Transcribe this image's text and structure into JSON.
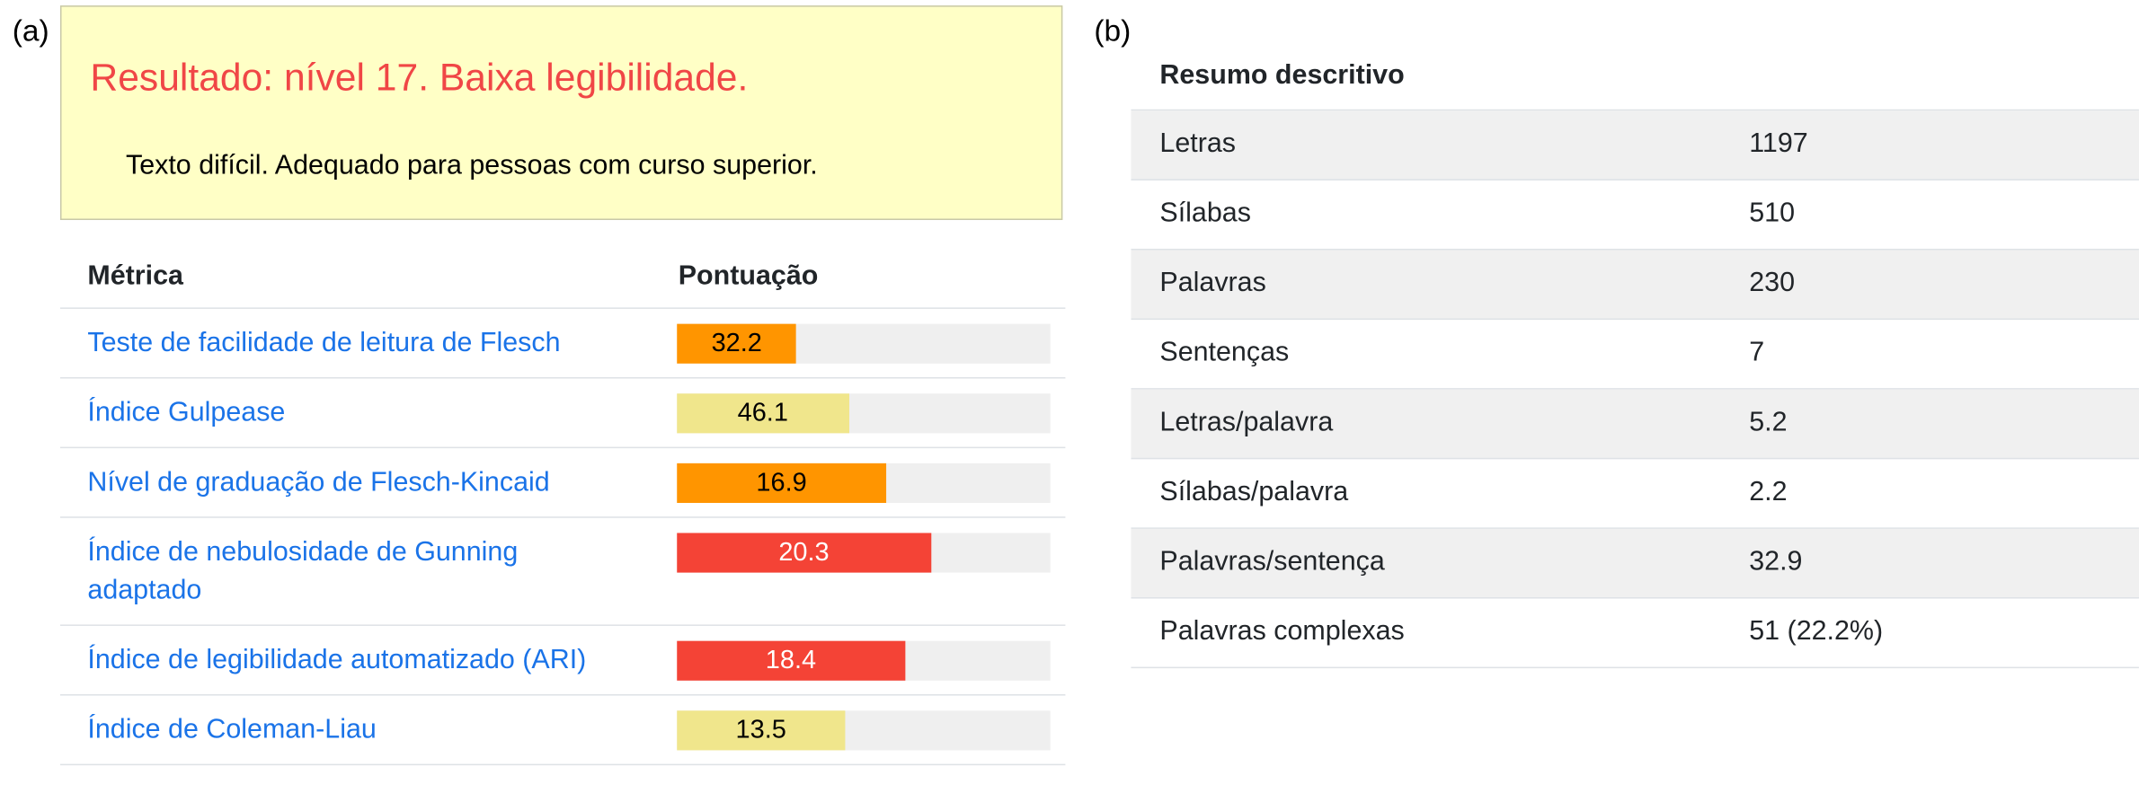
{
  "panel_labels": {
    "a": "(a)",
    "b": "(b)"
  },
  "result": {
    "title": "Resultado: nível 17. Baixa legibilidade.",
    "description": "Texto difícil. Adequado para pessoas com curso superior."
  },
  "metrics": {
    "header": {
      "metric": "Métrica",
      "score": "Pontuação"
    },
    "rows": [
      {
        "name": "Teste de facilidade de leitura de Flesch",
        "value": "32.2",
        "fill": 0.32,
        "color": "#ff9500",
        "text_color": "#000000"
      },
      {
        "name": "Índice Gulpease",
        "value": "46.1",
        "fill": 0.46,
        "color": "#f0e68c",
        "text_color": "#000000"
      },
      {
        "name": "Nível de graduação de Flesch-Kincaid",
        "value": "16.9",
        "fill": 0.56,
        "color": "#ff9500",
        "text_color": "#000000"
      },
      {
        "name": "Índice de nebulosidade de Gunning adaptado",
        "value": "20.3",
        "fill": 0.68,
        "color": "#f44336",
        "text_color": "#ffffff"
      },
      {
        "name": "Índice de legibilidade automatizado (ARI)",
        "value": "18.4",
        "fill": 0.61,
        "color": "#f44336",
        "text_color": "#ffffff"
      },
      {
        "name": "Índice de Coleman-Liau",
        "value": "13.5",
        "fill": 0.45,
        "color": "#f0e68c",
        "text_color": "#000000"
      }
    ]
  },
  "summary": {
    "title": "Resumo descritivo",
    "rows": [
      {
        "label": "Letras",
        "value": "1197"
      },
      {
        "label": "Sílabas",
        "value": "510"
      },
      {
        "label": "Palavras",
        "value": "230"
      },
      {
        "label": "Sentenças",
        "value": "7"
      },
      {
        "label": "Letras/palavra",
        "value": "5.2"
      },
      {
        "label": "Sílabas/palavra",
        "value": "2.2"
      },
      {
        "label": "Palavras/sentença",
        "value": "32.9"
      },
      {
        "label": "Palavras complexas",
        "value": "51 (22.2%)"
      }
    ]
  }
}
